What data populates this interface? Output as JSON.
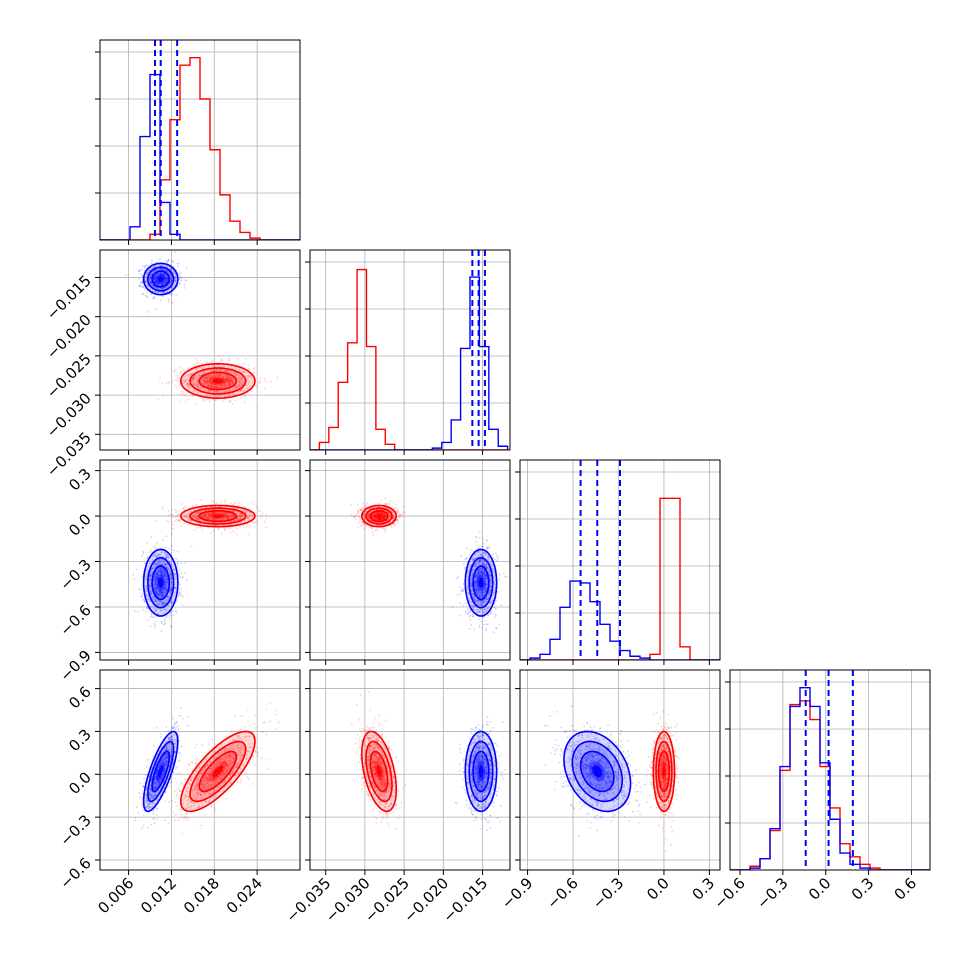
{
  "figure": {
    "type": "corner-plot",
    "panels": 10
  },
  "colors": {
    "series_a": "#0000ff",
    "series_b": "#ff0000",
    "grid": "#b0b0b0",
    "axes": "#000000"
  },
  "chart_data": {
    "type": "corner",
    "parameters": [
      {
        "range": [
          0.002,
          0.03
        ],
        "ticks": [
          "0.006",
          "0.012",
          "0.018",
          "0.024"
        ],
        "tick_values": [
          0.006,
          0.012,
          0.018,
          0.024
        ]
      },
      {
        "range": [
          -0.037,
          -0.0115
        ],
        "ticks": [
          "−0.035",
          "−0.030",
          "−0.025",
          "−0.020",
          "−0.015"
        ],
        "tick_values": [
          -0.035,
          -0.03,
          -0.025,
          -0.02,
          -0.015
        ]
      },
      {
        "range": [
          -0.95,
          0.37
        ],
        "ticks": [
          "−0.9",
          "−0.6",
          "−0.3",
          "0.0",
          "0.3"
        ],
        "tick_values": [
          -0.9,
          -0.6,
          -0.3,
          0.0,
          0.3
        ]
      },
      {
        "range": [
          -0.67,
          0.73
        ],
        "ticks": [
          "−0.6",
          "−0.3",
          "0.0",
          "0.3",
          "0.6"
        ],
        "tick_values": [
          -0.6,
          -0.3,
          0.0,
          0.3,
          0.6
        ]
      }
    ],
    "series": [
      {
        "color": "#0000ff",
        "means": [
          0.0105,
          -0.0152,
          -0.44,
          0.02
        ],
        "sds": [
          0.0012,
          0.001,
          0.11,
          0.14
        ],
        "quantiles": [
          [
            0.0097,
            0.0105,
            0.0128
          ],
          [
            -0.0163,
            -0.0155,
            -0.0147
          ],
          [
            -0.55,
            -0.44,
            -0.29
          ],
          [
            -0.14,
            0.02,
            0.19
          ]
        ],
        "correlation": {
          "p0_p3": 0.75,
          "p2_p3": -0.3
        }
      },
      {
        "color": "#ff0000",
        "means": [
          0.0185,
          -0.0282,
          0.0,
          0.02
        ],
        "sds": [
          0.0026,
          0.0011,
          0.035,
          0.14
        ],
        "correlation": {
          "p0_p3": 0.75,
          "p1_p3": -0.45
        }
      }
    ],
    "histograms": [
      {
        "param": 0,
        "edges_start": 0.002,
        "bin_width": 0.0014,
        "series_a": [
          0,
          0,
          0,
          0.07,
          0.55,
          0.88,
          0.2,
          0.03,
          0,
          0,
          0,
          0,
          0,
          0,
          0,
          0,
          0,
          0,
          0,
          0
        ],
        "series_b": [
          0,
          0,
          0,
          0,
          0,
          0.03,
          0.32,
          0.64,
          0.93,
          0.97,
          0.75,
          0.48,
          0.24,
          0.1,
          0.04,
          0.01,
          0,
          0,
          0,
          0
        ]
      },
      {
        "param": 1,
        "edges_start": -0.037,
        "bin_width": 0.0012,
        "series_a": [
          0,
          0,
          0,
          0,
          0,
          0,
          0,
          0,
          0,
          0,
          0,
          0,
          0,
          0.01,
          0.04,
          0.16,
          0.54,
          0.92,
          0.55,
          0.11,
          0.02
        ],
        "series_b": [
          0,
          0.04,
          0.12,
          0.36,
          0.57,
          0.96,
          0.55,
          0.11,
          0.03,
          0,
          0,
          0,
          0,
          0,
          0,
          0,
          0,
          0,
          0,
          0,
          0
        ]
      },
      {
        "param": 2,
        "edges_start": -0.95,
        "bin_width": 0.066,
        "series_a": [
          0,
          0.01,
          0.03,
          0.11,
          0.28,
          0.42,
          0.41,
          0.31,
          0.19,
          0.1,
          0.05,
          0.02,
          0.01,
          0,
          0,
          0,
          0,
          0,
          0,
          0
        ],
        "series_b": [
          0,
          0,
          0,
          0,
          0,
          0,
          0,
          0,
          0,
          0,
          0,
          0,
          0,
          0.03,
          0.86,
          0.86,
          0.07,
          0,
          0,
          0
        ]
      },
      {
        "param": 3,
        "edges_start": -0.67,
        "bin_width": 0.07,
        "series_a": [
          0,
          0,
          0.01,
          0.06,
          0.22,
          0.55,
          0.87,
          0.97,
          0.87,
          0.57,
          0.27,
          0.09,
          0.03,
          0.01,
          0,
          0,
          0,
          0,
          0,
          0
        ],
        "series_b": [
          0,
          0,
          0.02,
          0.06,
          0.21,
          0.53,
          0.88,
          0.9,
          0.8,
          0.55,
          0.33,
          0.14,
          0.07,
          0.03,
          0.01,
          0,
          0,
          0,
          0,
          0
        ]
      }
    ]
  }
}
